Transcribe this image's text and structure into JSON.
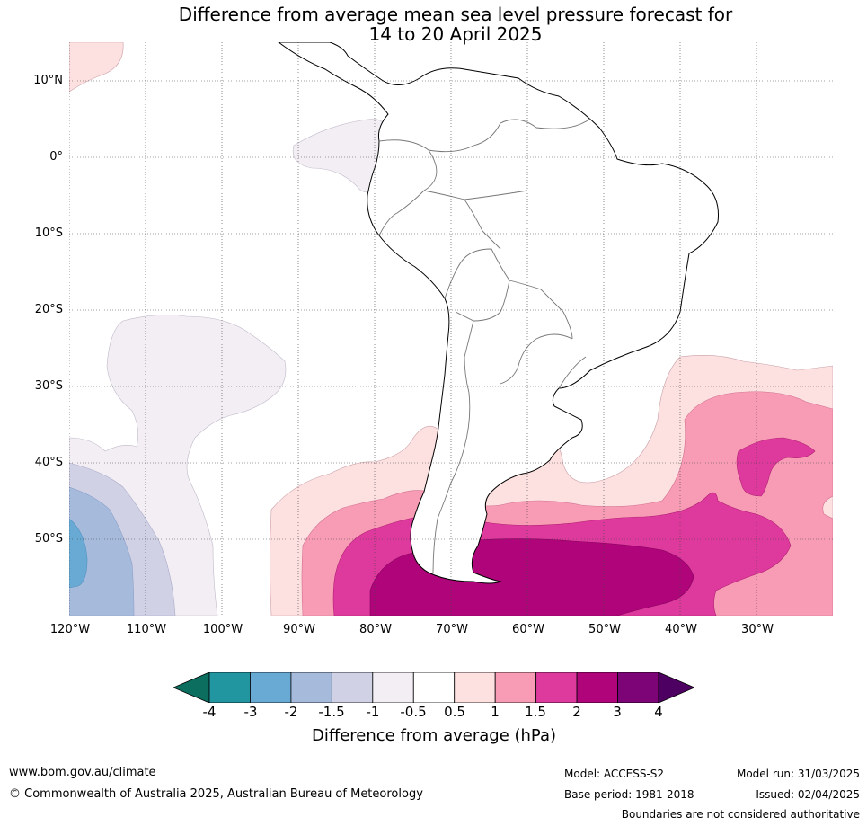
{
  "title_line1": "Difference from average mean sea level pressure forecast for",
  "title_line2": "14 to 20 April 2025",
  "map": {
    "lat_labels": [
      "10°N",
      "0°",
      "10°S",
      "20°S",
      "30°S",
      "40°S",
      "50°S"
    ],
    "lon_labels": [
      "120°W",
      "110°W",
      "100°W",
      "90°W",
      "80°W",
      "70°W",
      "60°W",
      "50°W",
      "40°W",
      "30°W"
    ],
    "gridlines": true
  },
  "colorbar": {
    "label": "Difference from average (hPa)",
    "ticks": [
      "-4",
      "-3",
      "-2",
      "-1.5",
      "-1",
      "-0.5",
      "0.5",
      "1",
      "1.5",
      "2",
      "3",
      "4"
    ],
    "colors": [
      "#0b6e5f",
      "#2196a0",
      "#68aad4",
      "#a6bbdc",
      "#d1d1e5",
      "#f2eef4",
      "#ffffff",
      "#fde0e0",
      "#f89cb6",
      "#de3a9e",
      "#b0057a",
      "#7c0476",
      "#4e0062"
    ]
  },
  "footer": {
    "website": "www.bom.gov.au/climate",
    "copyright": "© Commonwealth of Australia 2025, Australian Bureau of Meteorology",
    "model": "Model: ACCESS-S2",
    "base_period": "Base period: 1981-2018",
    "model_run": "Model run: 31/03/2025",
    "issued": "Issued: 02/04/2025",
    "disclaimer": "Boundaries are not considered authoritative"
  }
}
